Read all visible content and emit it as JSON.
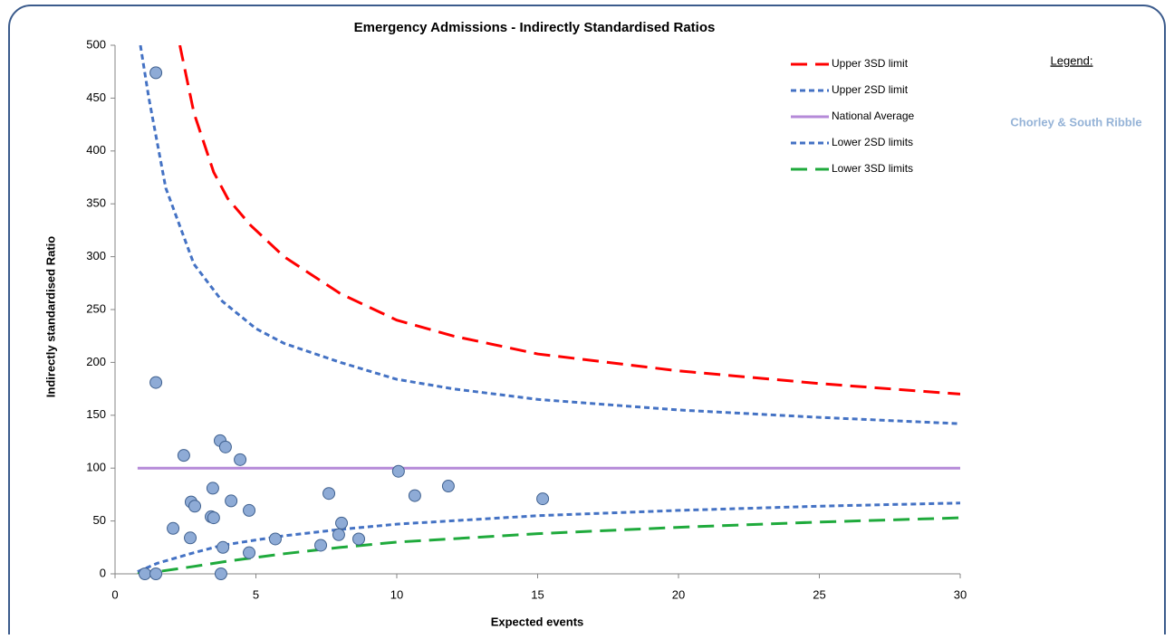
{
  "chart_data": {
    "type": "scatter",
    "title": "Emergency Admissions - Indirectly Standardised Ratios",
    "x_label": "Expected events",
    "y_label": "Indirectly standardised Ratio",
    "annotations": [
      "Legend:",
      "Chorley & South Ribble"
    ],
    "xlim": [
      0,
      30
    ],
    "xticks": [
      0,
      5,
      10,
      15,
      20,
      25,
      30
    ],
    "ylim": [
      0,
      500
    ],
    "yticks": [
      0,
      50,
      100,
      150,
      200,
      250,
      300,
      350,
      400,
      450,
      500
    ],
    "legend": "upper right",
    "series": [
      {
        "name": "Upper 3SD limit",
        "kind": "line",
        "color": "#ff0000",
        "dash": "long",
        "x": [
          2.3,
          2.8,
          3.5,
          4,
          4.8,
          6,
          8,
          10,
          12,
          15,
          20,
          25,
          30
        ],
        "values": [
          500,
          436,
          380,
          355,
          330,
          300,
          265,
          240,
          225,
          208,
          192,
          180,
          170
        ]
      },
      {
        "name": "Upper 2SD limit",
        "kind": "line",
        "color": "#4472c4",
        "dash": "short",
        "x": [
          0.9,
          1.2,
          1.8,
          2.8,
          3.8,
          5,
          6,
          8,
          10,
          12,
          15,
          20,
          25,
          30
        ],
        "values": [
          500,
          450,
          365,
          293,
          258,
          232,
          218,
          200,
          184,
          175,
          165,
          155,
          148,
          142
        ]
      },
      {
        "name": "National Average",
        "kind": "line",
        "color": "#b58ad8",
        "dash": "solid",
        "x": [
          0.8,
          30
        ],
        "values": [
          100,
          100
        ]
      },
      {
        "name": "Lower 2SD limits",
        "kind": "line",
        "color": "#4472c4",
        "dash": "short",
        "x": [
          0.8,
          1.5,
          2.8,
          3.8,
          5,
          6,
          8,
          10,
          15,
          20,
          25,
          30
        ],
        "values": [
          2,
          10,
          20,
          27,
          32,
          36,
          42,
          47,
          55,
          60,
          64,
          67
        ]
      },
      {
        "name": "Lower 3SD limits",
        "kind": "line",
        "color": "#1faa3c",
        "dash": "long",
        "x": [
          0.8,
          1.5,
          2.8,
          4,
          6,
          8,
          10,
          15,
          20,
          25,
          30
        ],
        "values": [
          0,
          2,
          7,
          12,
          19,
          25,
          30,
          38,
          44,
          49,
          53
        ]
      },
      {
        "kind": "points",
        "color": "#8eabd6",
        "x": [
          1.45,
          1.45,
          1.06,
          1.45,
          2.44,
          2.7,
          2.83,
          2.67,
          2.06,
          3.47,
          3.41,
          3.5,
          3.73,
          3.92,
          4.44,
          4.12,
          4.76,
          3.83,
          3.76,
          4.76,
          5.69,
          7.59,
          7.3,
          7.94,
          8.04,
          8.65,
          10.06,
          10.64,
          11.83,
          15.18
        ],
        "values": [
          474,
          181,
          0,
          0,
          112,
          68,
          64,
          34,
          43,
          81,
          54,
          53,
          126,
          120,
          108,
          69,
          60,
          25,
          0,
          20,
          33,
          76,
          27,
          37,
          48,
          33,
          97,
          74,
          83,
          71
        ]
      }
    ]
  }
}
